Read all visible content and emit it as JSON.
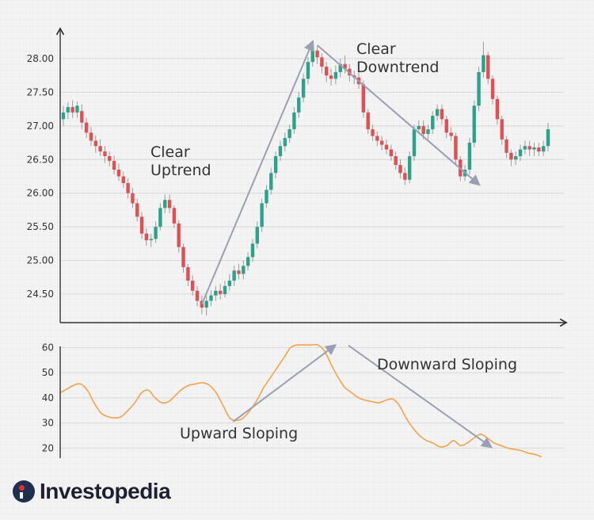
{
  "brand": {
    "name": "Investopedia",
    "icon": "investopedia-logo-icon"
  },
  "colors": {
    "up": "#2aa38a",
    "down": "#e04f52",
    "wick": "#9a9aa0",
    "rsi_line": "#f4a24a",
    "arrow": "#9aa0b2",
    "grid": "#d8d8d8",
    "axis": "#333333"
  },
  "chart_data": [
    {
      "type": "candlestick",
      "grid": true,
      "ylim": [
        24.1,
        28.4
      ],
      "y_ticks": [
        "28.00",
        "27.50",
        "27.00",
        "26.50",
        "26.00",
        "25.50",
        "25.00",
        "24.50"
      ],
      "candles": [
        [
          27.1,
          27.2,
          27.3,
          27.0
        ],
        [
          27.2,
          27.28,
          27.35,
          27.1
        ],
        [
          27.28,
          27.2,
          27.38,
          27.12
        ],
        [
          27.2,
          27.3,
          27.36,
          27.12
        ],
        [
          27.22,
          27.05,
          27.32,
          26.95
        ],
        [
          27.05,
          26.9,
          27.12,
          26.82
        ],
        [
          26.9,
          26.78,
          26.98,
          26.7
        ],
        [
          26.78,
          26.7,
          26.86,
          26.6
        ],
        [
          26.7,
          26.62,
          26.8,
          26.55
        ],
        [
          26.62,
          26.55,
          26.7,
          26.45
        ],
        [
          26.55,
          26.48,
          26.62,
          26.4
        ],
        [
          26.48,
          26.35,
          26.56,
          26.28
        ],
        [
          26.35,
          26.25,
          26.44,
          26.18
        ],
        [
          26.25,
          26.15,
          26.32,
          26.08
        ],
        [
          26.15,
          26.0,
          26.22,
          25.92
        ],
        [
          26.0,
          25.85,
          26.08,
          25.78
        ],
        [
          25.85,
          25.65,
          25.92,
          25.58
        ],
        [
          25.65,
          25.4,
          25.72,
          25.32
        ],
        [
          25.4,
          25.3,
          25.48,
          25.22
        ],
        [
          25.3,
          25.32,
          25.4,
          25.2
        ],
        [
          25.32,
          25.5,
          25.58,
          25.26
        ],
        [
          25.5,
          25.78,
          25.85,
          25.45
        ],
        [
          25.78,
          25.9,
          25.98,
          25.7
        ],
        [
          25.9,
          25.78,
          25.98,
          25.7
        ],
        [
          25.78,
          25.55,
          25.82,
          25.48
        ],
        [
          25.55,
          25.2,
          25.6,
          25.12
        ],
        [
          25.2,
          24.9,
          25.25,
          24.82
        ],
        [
          24.9,
          24.7,
          24.95,
          24.62
        ],
        [
          24.7,
          24.55,
          24.78,
          24.48
        ],
        [
          24.55,
          24.4,
          24.62,
          24.32
        ],
        [
          24.4,
          24.3,
          24.48,
          24.2
        ],
        [
          24.3,
          24.4,
          24.48,
          24.18
        ],
        [
          24.4,
          24.48,
          24.56,
          24.32
        ],
        [
          24.48,
          24.55,
          24.62,
          24.4
        ],
        [
          24.55,
          24.5,
          24.65,
          24.42
        ],
        [
          24.5,
          24.62,
          24.7,
          24.45
        ],
        [
          24.62,
          24.7,
          24.8,
          24.55
        ],
        [
          24.7,
          24.85,
          24.92,
          24.62
        ],
        [
          24.85,
          24.8,
          24.95,
          24.72
        ],
        [
          24.8,
          24.92,
          25.0,
          24.72
        ],
        [
          24.92,
          25.05,
          25.12,
          24.85
        ],
        [
          25.05,
          25.25,
          25.32,
          24.98
        ],
        [
          25.25,
          25.5,
          25.58,
          25.18
        ],
        [
          25.5,
          25.85,
          25.92,
          25.42
        ],
        [
          25.85,
          26.05,
          26.12,
          25.78
        ],
        [
          26.05,
          26.3,
          26.38,
          25.98
        ],
        [
          26.3,
          26.55,
          26.62,
          26.22
        ],
        [
          26.55,
          26.7,
          26.78,
          26.48
        ],
        [
          26.7,
          26.82,
          26.9,
          26.62
        ],
        [
          26.82,
          26.95,
          27.02,
          26.75
        ],
        [
          26.95,
          27.2,
          27.28,
          26.88
        ],
        [
          27.2,
          27.42,
          27.5,
          27.12
        ],
        [
          27.42,
          27.7,
          27.78,
          27.35
        ],
        [
          27.7,
          27.95,
          28.02,
          27.62
        ],
        [
          27.95,
          28.12,
          28.2,
          27.88
        ],
        [
          28.12,
          28.02,
          28.18,
          27.92
        ],
        [
          28.02,
          27.88,
          28.08,
          27.78
        ],
        [
          27.88,
          27.75,
          27.95,
          27.65
        ],
        [
          27.75,
          27.7,
          27.85,
          27.6
        ],
        [
          27.7,
          27.8,
          27.9,
          27.62
        ],
        [
          27.8,
          27.92,
          28.0,
          27.72
        ],
        [
          27.92,
          27.85,
          28.05,
          27.78
        ],
        [
          27.85,
          27.75,
          27.92,
          27.66
        ],
        [
          27.75,
          27.72,
          27.82,
          27.62
        ],
        [
          27.72,
          27.62,
          27.8,
          27.55
        ],
        [
          27.62,
          27.2,
          27.68,
          27.12
        ],
        [
          27.2,
          26.95,
          27.25,
          26.88
        ],
        [
          26.95,
          26.85,
          27.02,
          26.78
        ],
        [
          26.85,
          26.78,
          26.92,
          26.7
        ],
        [
          26.78,
          26.72,
          26.85,
          26.64
        ],
        [
          26.72,
          26.65,
          26.8,
          26.58
        ],
        [
          26.65,
          26.55,
          26.72,
          26.48
        ],
        [
          26.55,
          26.42,
          26.62,
          26.35
        ],
        [
          26.42,
          26.3,
          26.5,
          26.22
        ],
        [
          26.3,
          26.2,
          26.38,
          26.12
        ],
        [
          26.2,
          26.55,
          26.62,
          26.15
        ],
        [
          26.55,
          26.95,
          27.02,
          26.48
        ],
        [
          26.95,
          27.0,
          27.08,
          26.88
        ],
        [
          27.0,
          26.88,
          27.08,
          26.8
        ],
        [
          26.88,
          26.95,
          27.02,
          26.8
        ],
        [
          26.95,
          27.15,
          27.22,
          26.88
        ],
        [
          27.15,
          27.25,
          27.32,
          27.08
        ],
        [
          27.25,
          27.1,
          27.32,
          27.02
        ],
        [
          27.1,
          26.9,
          27.15,
          26.82
        ],
        [
          26.9,
          26.85,
          26.98,
          26.78
        ],
        [
          26.85,
          26.5,
          26.9,
          26.42
        ],
        [
          26.5,
          26.25,
          26.55,
          26.18
        ],
        [
          26.25,
          26.35,
          26.42,
          26.18
        ],
        [
          26.35,
          26.75,
          26.82,
          26.28
        ],
        [
          26.75,
          27.3,
          27.38,
          26.68
        ],
        [
          27.3,
          27.8,
          27.88,
          27.22
        ],
        [
          27.8,
          28.05,
          28.25,
          27.72
        ],
        [
          28.05,
          27.7,
          28.1,
          27.62
        ],
        [
          27.7,
          27.4,
          27.75,
          27.32
        ],
        [
          27.4,
          27.1,
          27.45,
          27.02
        ],
        [
          27.1,
          26.8,
          27.15,
          26.72
        ],
        [
          26.8,
          26.6,
          26.85,
          26.52
        ],
        [
          26.6,
          26.5,
          26.65,
          26.4
        ],
        [
          26.5,
          26.55,
          26.62,
          26.42
        ],
        [
          26.55,
          26.65,
          26.72,
          26.48
        ],
        [
          26.65,
          26.7,
          26.78,
          26.58
        ],
        [
          26.7,
          26.65,
          26.78,
          26.55
        ],
        [
          26.65,
          26.68,
          26.75,
          26.55
        ],
        [
          26.68,
          26.62,
          26.75,
          26.55
        ],
        [
          26.62,
          26.7,
          26.78,
          26.55
        ],
        [
          26.7,
          26.95,
          27.05,
          26.62
        ]
      ],
      "annotations": [
        {
          "lines": [
            "Clear",
            "Uptrend"
          ]
        },
        {
          "lines": [
            "Clear",
            "Downtrend"
          ]
        }
      ],
      "trend_arrows": [
        {
          "from": [
            30,
            24.35
          ],
          "to": [
            54,
            28.25
          ]
        },
        {
          "from": [
            55,
            28.2
          ],
          "to": [
            90,
            26.13
          ]
        }
      ]
    },
    {
      "type": "line",
      "grid": true,
      "ylim": [
        16,
        62
      ],
      "y_ticks": [
        "60",
        "50",
        "40",
        "30",
        "20"
      ],
      "values": [
        42,
        43.5,
        45,
        45.5,
        43,
        38,
        34,
        32.5,
        32,
        32.5,
        35,
        38,
        42,
        43,
        40,
        38,
        38.5,
        41,
        43.5,
        45,
        45.5,
        46,
        45,
        42,
        37,
        32,
        31,
        32,
        35,
        39,
        44,
        48,
        52,
        56,
        60,
        61,
        61,
        61,
        61,
        58.5,
        53,
        48,
        44,
        42,
        40,
        39,
        38.5,
        38,
        39,
        39.5,
        37,
        32,
        28,
        25,
        23,
        22,
        20.5,
        21,
        23,
        21,
        22,
        24,
        25.5,
        24,
        22,
        21,
        20,
        19.5,
        19,
        18,
        17.5,
        16.5
      ],
      "annotations": [
        {
          "text": "Upward Sloping"
        },
        {
          "text": "Downward Sloping"
        }
      ],
      "trend_arrows": [
        {
          "from": [
            25.5,
            30.5
          ],
          "to": [
            40.5,
            60.8
          ]
        },
        {
          "from": [
            42.5,
            60.8
          ],
          "to": [
            63.5,
            20.5
          ]
        }
      ]
    }
  ]
}
